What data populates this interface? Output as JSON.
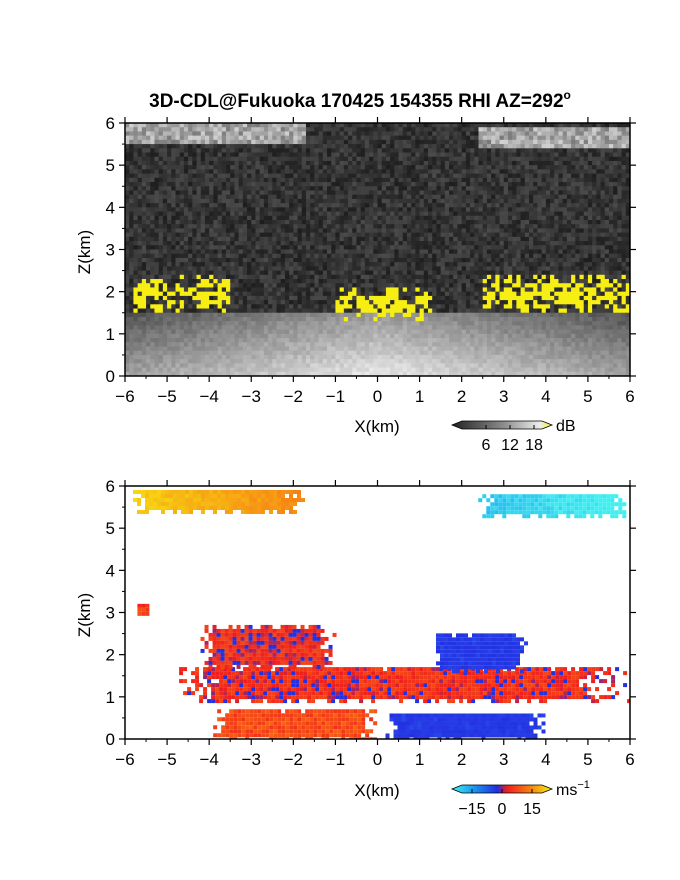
{
  "title": "3D-CDL@Fukuoka 170425 154355 RHI AZ=292",
  "title_superscript": "o",
  "colors": {
    "background": "#ffffff",
    "frame": "#000000",
    "highlight_yellow": "#f7ef14"
  },
  "chart_data": [
    {
      "type": "heatmap",
      "name": "backscatter",
      "xlabel": "X(km)",
      "ylabel": "Z(km)",
      "xlim": [
        -6,
        6
      ],
      "ylim": [
        0,
        6
      ],
      "x_ticks": [
        "-6",
        "-5",
        "-4",
        "-3",
        "-2",
        "-1",
        "0",
        "1",
        "2",
        "3",
        "4",
        "5",
        "6"
      ],
      "y_ticks": [
        "0",
        "1",
        "2",
        "3",
        "4",
        "5",
        "6"
      ],
      "colorbar": {
        "unit": "dB",
        "ticks": [
          "6",
          "12",
          "18"
        ],
        "values": [
          6,
          12,
          18
        ],
        "range": [
          0,
          20
        ],
        "colormap": "grayscale-to-yellow"
      },
      "features": [
        {
          "kind": "strong_echo_yellow",
          "x": [
            -5.8,
            -3.5
          ],
          "z": [
            1.5,
            2.4
          ]
        },
        {
          "kind": "strong_echo_yellow",
          "x": [
            -1.0,
            1.3
          ],
          "z": [
            1.3,
            2.1
          ]
        },
        {
          "kind": "strong_echo_yellow",
          "x": [
            2.5,
            6.0
          ],
          "z": [
            1.5,
            2.4
          ]
        },
        {
          "kind": "bright_layer_gray",
          "x": [
            -6.0,
            -1.7
          ],
          "z": [
            5.5,
            6.0
          ]
        },
        {
          "kind": "bright_layer_gray",
          "x": [
            2.4,
            6.0
          ],
          "z": [
            5.4,
            5.9
          ]
        },
        {
          "kind": "boundary_layer_gray",
          "x": [
            -6.0,
            6.0
          ],
          "z": [
            0.0,
            1.5
          ]
        }
      ]
    },
    {
      "type": "heatmap",
      "name": "radial_velocity",
      "xlabel": "X(km)",
      "ylabel": "Z(km)",
      "xlim": [
        -6,
        6
      ],
      "ylim": [
        0,
        6
      ],
      "x_ticks": [
        "-6",
        "-5",
        "-4",
        "-3",
        "-2",
        "-1",
        "0",
        "1",
        "2",
        "3",
        "4",
        "5",
        "6"
      ],
      "y_ticks": [
        "0",
        "1",
        "2",
        "3",
        "4",
        "5",
        "6"
      ],
      "colorbar": {
        "unit": "ms",
        "unit_exponent": "−1",
        "ticks": [
          "−15",
          "0",
          "15"
        ],
        "values": [
          -15,
          0,
          15
        ],
        "range": [
          -20,
          20
        ],
        "colormap": "cyan-blue-red-yellow"
      },
      "features": [
        {
          "kind": "velocity_patch",
          "x": [
            -6.0,
            -1.7
          ],
          "z": [
            5.4,
            6.0
          ],
          "v": 12
        },
        {
          "kind": "velocity_patch",
          "x": [
            2.3,
            6.0
          ],
          "z": [
            5.3,
            5.9
          ],
          "v": -17
        },
        {
          "kind": "velocity_patch",
          "x": [
            -5.8,
            -5.5
          ],
          "z": [
            3.0,
            3.3
          ],
          "v": 4
        },
        {
          "kind": "velocity_patch",
          "x": [
            -5.0,
            6.0
          ],
          "z": [
            0.9,
            1.8
          ],
          "v": 3
        },
        {
          "kind": "velocity_patch",
          "x": [
            -4.3,
            -1.0
          ],
          "z": [
            1.7,
            2.8
          ],
          "v": 3
        },
        {
          "kind": "velocity_patch",
          "x": [
            1.2,
            3.5
          ],
          "z": [
            1.6,
            2.6
          ],
          "v": -6
        },
        {
          "kind": "velocity_patch",
          "x": [
            -4.0,
            0.0
          ],
          "z": [
            0.0,
            0.8
          ],
          "v": 6
        },
        {
          "kind": "velocity_patch",
          "x": [
            0.0,
            4.0
          ],
          "z": [
            0.0,
            0.7
          ],
          "v": -6
        }
      ]
    }
  ]
}
